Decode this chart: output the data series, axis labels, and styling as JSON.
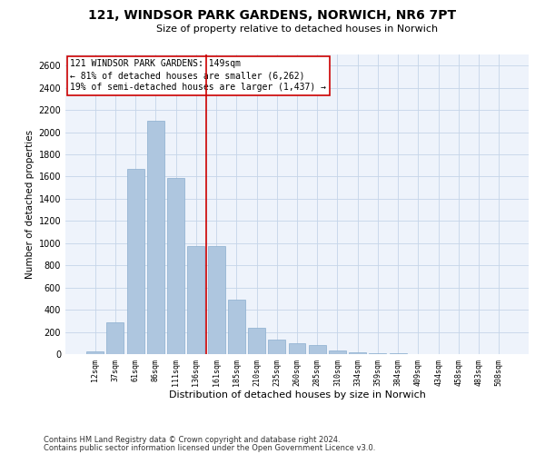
{
  "title": "121, WINDSOR PARK GARDENS, NORWICH, NR6 7PT",
  "subtitle": "Size of property relative to detached houses in Norwich",
  "xlabel": "Distribution of detached houses by size in Norwich",
  "ylabel": "Number of detached properties",
  "footnote1": "Contains HM Land Registry data © Crown copyright and database right 2024.",
  "footnote2": "Contains public sector information licensed under the Open Government Licence v3.0.",
  "annotation_line1": "121 WINDSOR PARK GARDENS: 149sqm",
  "annotation_line2": "← 81% of detached houses are smaller (6,262)",
  "annotation_line3": "19% of semi-detached houses are larger (1,437) →",
  "bar_color": "#aec6df",
  "bar_edge_color": "#8aaecf",
  "vline_color": "#cc0000",
  "annotation_box_color": "#cc0000",
  "background_color": "#eef3fb",
  "grid_color": "#c5d5e8",
  "categories": [
    "12sqm",
    "37sqm",
    "61sqm",
    "86sqm",
    "111sqm",
    "136sqm",
    "161sqm",
    "185sqm",
    "210sqm",
    "235sqm",
    "260sqm",
    "285sqm",
    "310sqm",
    "334sqm",
    "359sqm",
    "384sqm",
    "409sqm",
    "434sqm",
    "458sqm",
    "483sqm",
    "508sqm"
  ],
  "values": [
    28,
    285,
    1670,
    2100,
    1590,
    970,
    970,
    490,
    240,
    128,
    100,
    78,
    33,
    18,
    5,
    8,
    3,
    3,
    3,
    3,
    3
  ],
  "ylim": [
    0,
    2700
  ],
  "yticks": [
    0,
    200,
    400,
    600,
    800,
    1000,
    1200,
    1400,
    1600,
    1800,
    2000,
    2200,
    2400,
    2600
  ],
  "vline_x": 5.5,
  "title_fontsize": 10,
  "subtitle_fontsize": 8,
  "ylabel_fontsize": 7.5,
  "xlabel_fontsize": 8,
  "xtick_fontsize": 6,
  "ytick_fontsize": 7,
  "annot_fontsize": 7,
  "footnote_fontsize": 6
}
